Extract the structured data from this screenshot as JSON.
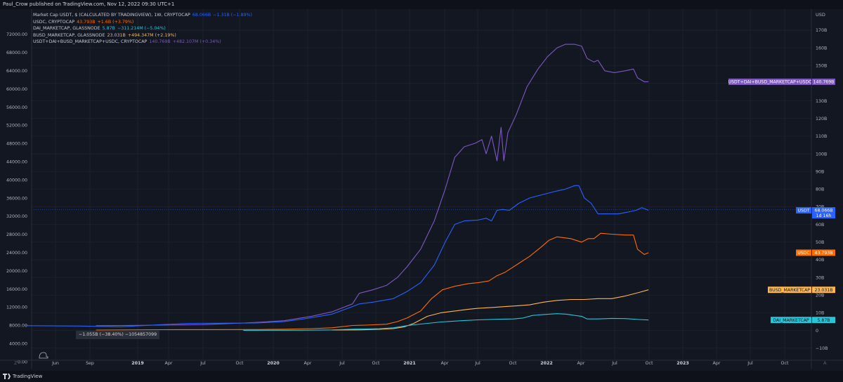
{
  "header": {
    "publish_text": "Paul_Crow published on TradingView.com, Nov 12, 2022 09:30 UTC+1"
  },
  "footer": {
    "brand": "TradingView"
  },
  "tooltip": {
    "text": "−1.055B (−38.40%) −1054857099"
  },
  "legend": [
    {
      "label": "Market Cap USDT, $ (CALCULATED BY TRADINGVIEW), 1W, CRYPTOCAP",
      "value": "68.066B",
      "change": "−1.31B (−1.89%)",
      "color": "#2962ff"
    },
    {
      "label": "USDC, CRYPTOCAP",
      "value": "43.793B",
      "change": "+1.6B (+3.79%)",
      "color": "#ff6d00"
    },
    {
      "label": "DAI_MARKETCAP, GLASSNODE",
      "value": "5.87B",
      "change": "−311.214M (−5.04%)",
      "color": "#26c6da"
    },
    {
      "label": "BUSD_MARKETCAP, GLASSNODE",
      "value": "23.031B",
      "change": "+494.347M (+2.19%)",
      "color": "#ffb74d"
    },
    {
      "label": "USDT+DAI+BUSD_MARKETCAP+USDC, CRYPTOCAP",
      "value": "140.769B",
      "change": "+482.107M (+0.34%)",
      "color": "#7e57c2"
    }
  ],
  "chart_data": {
    "type": "line",
    "x_tick_labels": [
      "Jun",
      "Sep",
      "2019",
      "Apr",
      "Jul",
      "Oct",
      "2020",
      "Apr",
      "Jul",
      "Oct",
      "2021",
      "Apr",
      "Jul",
      "Oct",
      "2022",
      "Apr",
      "Jul",
      "Oct",
      "2023",
      "Apr",
      "Jul",
      "Oct"
    ],
    "left_axis_labels": [
      "72000.00",
      "68000.00",
      "64000.00",
      "60000.00",
      "56000.00",
      "52000.00",
      "48000.00",
      "44000.00",
      "40000.00",
      "36000.00",
      "32000.00",
      "28000.00",
      "24000.00",
      "20000.00",
      "16000.00",
      "12000.00",
      "8000.00",
      "4000.00",
      "0.00"
    ],
    "right_axis_unit": "USD",
    "right_axis_labels": [
      "170B",
      "160B",
      "150B",
      "140B",
      "130B",
      "120B",
      "110B",
      "100B",
      "90B",
      "80B",
      "70B",
      "60B",
      "50B",
      "40B",
      "30B",
      "20B",
      "10B",
      "0",
      "−10B"
    ],
    "ylim_right": [
      -10,
      175
    ],
    "x_range": [
      2018.3,
      2023.95
    ],
    "series": [
      {
        "name": "USDT+DAI+BUSD_MARKETCAP+USDC",
        "label": "USDT+DAI+BUSD_MARKETCAP+USDC",
        "value_label": "140.769B",
        "color": "#7e57c2",
        "points": [
          [
            2018.82,
            2.7
          ],
          [
            2019.0,
            2.8
          ],
          [
            2019.3,
            3.0
          ],
          [
            2019.6,
            3.3
          ],
          [
            2019.9,
            4.2
          ],
          [
            2020.0,
            4.6
          ],
          [
            2020.2,
            5.5
          ],
          [
            2020.4,
            8.0
          ],
          [
            2020.55,
            10.5
          ],
          [
            2020.7,
            15.0
          ],
          [
            2020.75,
            21.0
          ],
          [
            2020.85,
            23.0
          ],
          [
            2020.95,
            25.5
          ],
          [
            2021.03,
            30.0
          ],
          [
            2021.1,
            36.0
          ],
          [
            2021.2,
            46.0
          ],
          [
            2021.3,
            62.0
          ],
          [
            2021.38,
            80.0
          ],
          [
            2021.45,
            98.0
          ],
          [
            2021.52,
            104.0
          ],
          [
            2021.6,
            106.0
          ],
          [
            2021.65,
            108.0
          ],
          [
            2021.68,
            100.0
          ],
          [
            2021.72,
            110.0
          ],
          [
            2021.76,
            96.0
          ],
          [
            2021.79,
            115.0
          ],
          [
            2021.81,
            96.0
          ],
          [
            2021.84,
            112.0
          ],
          [
            2021.9,
            122.0
          ],
          [
            2021.98,
            138.0
          ],
          [
            2022.06,
            148.0
          ],
          [
            2022.13,
            155.0
          ],
          [
            2022.2,
            160.0
          ],
          [
            2022.26,
            162.0
          ],
          [
            2022.33,
            162.0
          ],
          [
            2022.38,
            161.0
          ],
          [
            2022.42,
            154.0
          ],
          [
            2022.47,
            152.0
          ],
          [
            2022.5,
            153.0
          ],
          [
            2022.55,
            147.0
          ],
          [
            2022.62,
            146.0
          ],
          [
            2022.7,
            147.0
          ],
          [
            2022.76,
            148.0
          ],
          [
            2022.79,
            143.0
          ],
          [
            2022.84,
            140.8
          ],
          [
            2022.87,
            140.8
          ]
        ]
      },
      {
        "name": "USDT",
        "label": "USDT",
        "value_label": "68.066B",
        "extra_label": "1d 16h",
        "color": "#2962ff",
        "points": [
          [
            2018.3,
            2.7
          ],
          [
            2018.7,
            2.5
          ],
          [
            2019.0,
            2.1
          ],
          [
            2019.3,
            3.3
          ],
          [
            2019.5,
            4.0
          ],
          [
            2019.8,
            4.1
          ],
          [
            2020.0,
            4.2
          ],
          [
            2020.2,
            5.0
          ],
          [
            2020.35,
            6.6
          ],
          [
            2020.55,
            9.2
          ],
          [
            2020.7,
            13.5
          ],
          [
            2020.75,
            15.0
          ],
          [
            2020.85,
            16.0
          ],
          [
            2021.0,
            18.0
          ],
          [
            2021.1,
            22.0
          ],
          [
            2021.2,
            27.0
          ],
          [
            2021.3,
            37.0
          ],
          [
            2021.38,
            50.0
          ],
          [
            2021.45,
            60.0
          ],
          [
            2021.52,
            62.0
          ],
          [
            2021.62,
            62.5
          ],
          [
            2021.68,
            63.5
          ],
          [
            2021.72,
            62.0
          ],
          [
            2021.76,
            68.0
          ],
          [
            2021.8,
            68.5
          ],
          [
            2021.85,
            68.0
          ],
          [
            2021.92,
            72.0
          ],
          [
            2022.0,
            75.0
          ],
          [
            2022.1,
            77.0
          ],
          [
            2022.2,
            79.0
          ],
          [
            2022.26,
            80.0
          ],
          [
            2022.33,
            82.0
          ],
          [
            2022.36,
            82.0
          ],
          [
            2022.4,
            75.0
          ],
          [
            2022.45,
            72.0
          ],
          [
            2022.5,
            66.0
          ],
          [
            2022.57,
            66.0
          ],
          [
            2022.65,
            66.0
          ],
          [
            2022.72,
            67.0
          ],
          [
            2022.78,
            68.0
          ],
          [
            2022.82,
            69.5
          ],
          [
            2022.84,
            69.0
          ],
          [
            2022.87,
            68.0
          ]
        ]
      },
      {
        "name": "USDC",
        "label": "USDC",
        "value_label": "43.793B",
        "color": "#ff6d00",
        "points": [
          [
            2018.82,
            0.2
          ],
          [
            2019.3,
            0.4
          ],
          [
            2019.6,
            0.45
          ],
          [
            2019.9,
            0.5
          ],
          [
            2020.0,
            0.5
          ],
          [
            2020.2,
            0.7
          ],
          [
            2020.4,
            1.0
          ],
          [
            2020.55,
            1.5
          ],
          [
            2020.7,
            2.8
          ],
          [
            2020.8,
            3.0
          ],
          [
            2020.95,
            3.5
          ],
          [
            2021.03,
            5.0
          ],
          [
            2021.1,
            7.0
          ],
          [
            2021.2,
            11.0
          ],
          [
            2021.28,
            18.0
          ],
          [
            2021.36,
            23.0
          ],
          [
            2021.45,
            25.0
          ],
          [
            2021.55,
            26.5
          ],
          [
            2021.62,
            27.0
          ],
          [
            2021.7,
            28.0
          ],
          [
            2021.76,
            31.0
          ],
          [
            2021.82,
            33.0
          ],
          [
            2021.92,
            38.0
          ],
          [
            2022.0,
            42.0
          ],
          [
            2022.08,
            47.0
          ],
          [
            2022.14,
            51.0
          ],
          [
            2022.2,
            53.0
          ],
          [
            2022.3,
            52.0
          ],
          [
            2022.38,
            50.0
          ],
          [
            2022.43,
            52.0
          ],
          [
            2022.47,
            52.0
          ],
          [
            2022.52,
            55.0
          ],
          [
            2022.6,
            54.5
          ],
          [
            2022.7,
            54.0
          ],
          [
            2022.76,
            54.0
          ],
          [
            2022.79,
            46.0
          ],
          [
            2022.84,
            43.0
          ],
          [
            2022.87,
            44.0
          ]
        ]
      },
      {
        "name": "BUSD_MARKETCAP",
        "label": "BUSD_MARKETCAP",
        "value_label": "23.031B",
        "color": "#ffb74d",
        "points": [
          [
            2020.55,
            0.2
          ],
          [
            2020.75,
            0.3
          ],
          [
            2020.9,
            0.6
          ],
          [
            2021.0,
            1.0
          ],
          [
            2021.08,
            2.0
          ],
          [
            2021.15,
            4.0
          ],
          [
            2021.25,
            8.0
          ],
          [
            2021.35,
            10.0
          ],
          [
            2021.45,
            11.0
          ],
          [
            2021.55,
            12.0
          ],
          [
            2021.62,
            12.5
          ],
          [
            2021.72,
            13.0
          ],
          [
            2021.82,
            13.5
          ],
          [
            2021.92,
            14.0
          ],
          [
            2022.0,
            14.5
          ],
          [
            2022.1,
            16.0
          ],
          [
            2022.2,
            17.0
          ],
          [
            2022.3,
            17.5
          ],
          [
            2022.4,
            17.5
          ],
          [
            2022.5,
            18.0
          ],
          [
            2022.6,
            18.0
          ],
          [
            2022.7,
            19.5
          ],
          [
            2022.8,
            21.5
          ],
          [
            2022.87,
            23.0
          ]
        ]
      },
      {
        "name": "DAI_MARKETCAP",
        "label": "DAI_MARKETCAP",
        "value_label": "5.87B",
        "color": "#26c6da",
        "points": [
          [
            2019.9,
            0.05
          ],
          [
            2020.3,
            0.1
          ],
          [
            2020.55,
            0.3
          ],
          [
            2020.75,
            0.8
          ],
          [
            2020.9,
            1.0
          ],
          [
            2021.0,
            1.5
          ],
          [
            2021.08,
            2.5
          ],
          [
            2021.15,
            3.2
          ],
          [
            2021.25,
            4.0
          ],
          [
            2021.35,
            4.8
          ],
          [
            2021.5,
            5.5
          ],
          [
            2021.62,
            6.0
          ],
          [
            2021.75,
            6.3
          ],
          [
            2021.88,
            6.5
          ],
          [
            2021.95,
            7.0
          ],
          [
            2022.02,
            8.5
          ],
          [
            2022.1,
            9.0
          ],
          [
            2022.2,
            9.5
          ],
          [
            2022.27,
            9.2
          ],
          [
            2022.33,
            8.5
          ],
          [
            2022.38,
            8.0
          ],
          [
            2022.42,
            6.5
          ],
          [
            2022.5,
            6.5
          ],
          [
            2022.6,
            6.8
          ],
          [
            2022.7,
            6.7
          ],
          [
            2022.8,
            6.2
          ],
          [
            2022.87,
            5.9
          ]
        ]
      }
    ]
  }
}
